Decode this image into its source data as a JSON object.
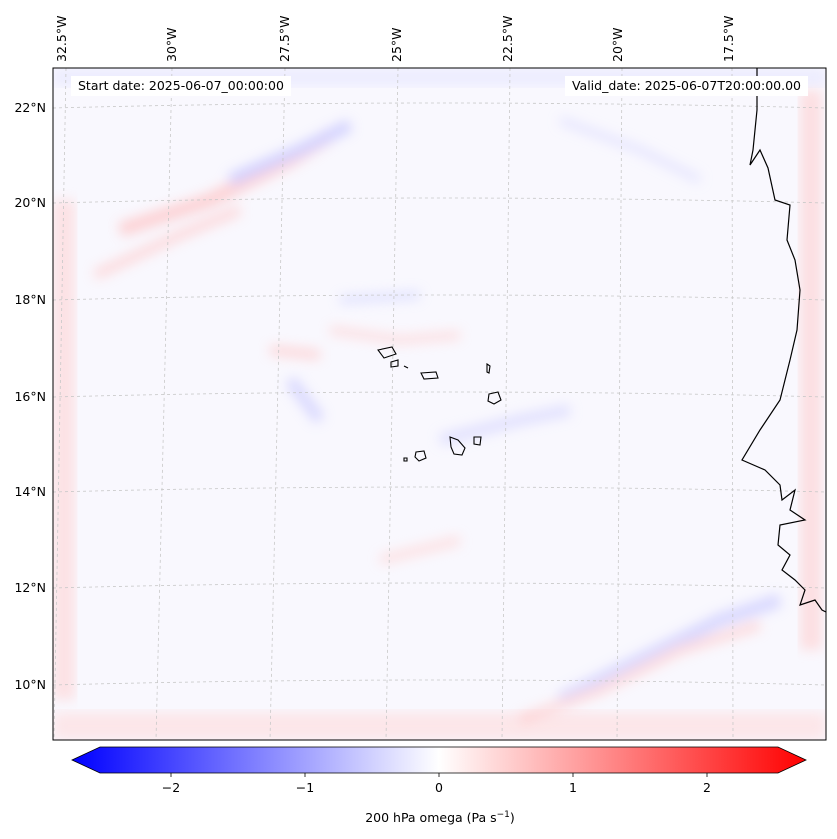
{
  "map": {
    "start_date_label": "Start date: 2025-06-07_00:00:00",
    "valid_date_label": "Valid_date: 2025-06-07T20:00:00.00",
    "lon_labels": [
      "32.5°W",
      "30°W",
      "27.5°W",
      "25°W",
      "22.5°W",
      "20°W",
      "17.5°W"
    ],
    "lat_labels": [
      "22°N",
      "20°N",
      "18°N",
      "16°N",
      "14°N",
      "12°N",
      "10°N"
    ],
    "colors": {
      "negative": "#0000ff",
      "neutral": "#ffffff",
      "positive": "#ff0000",
      "coastline": "#000000",
      "gridline": "#bbbbbb"
    }
  },
  "colorbar": {
    "ticks": [
      "−2",
      "−1",
      "0",
      "1",
      "2"
    ],
    "label": "200 hPa omega (Pa s",
    "label_exp": "−1",
    "label_close": ")"
  }
}
